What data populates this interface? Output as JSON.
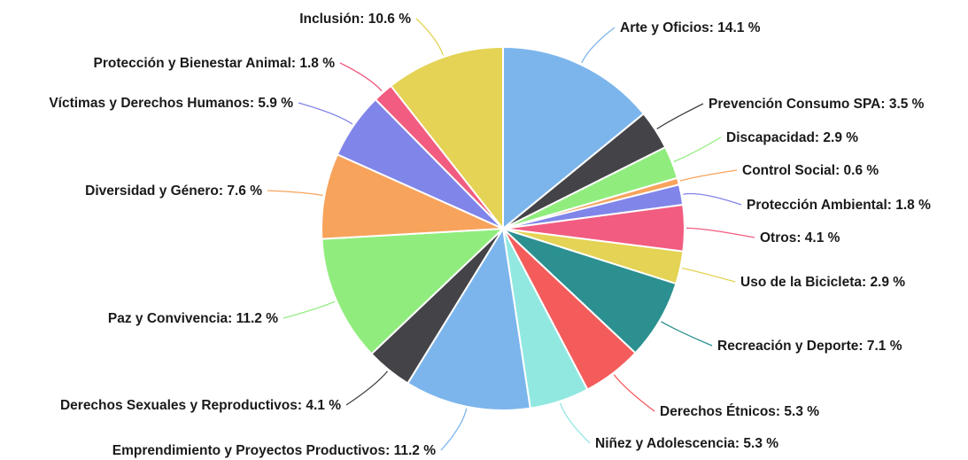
{
  "chart_data": {
    "type": "pie",
    "title": "",
    "start_angle_deg": 0,
    "direction": "clockwise",
    "slices": [
      {
        "label": "Arte y Oficios",
        "value": 14.1,
        "display": "Arte y Oficios: 14.1 %",
        "color": "#7cb5ec"
      },
      {
        "label": "Prevención Consumo SPA",
        "value": 3.5,
        "display": "Prevención Consumo SPA: 3.5 %",
        "color": "#434348"
      },
      {
        "label": "Discapacidad",
        "value": 2.9,
        "display": "Discapacidad: 2.9 %",
        "color": "#90ed7d"
      },
      {
        "label": "Control Social",
        "value": 0.6,
        "display": "Control Social: 0.6 %",
        "color": "#f7a35c"
      },
      {
        "label": "Protección Ambiental",
        "value": 1.8,
        "display": "Protección Ambiental: 1.8 %",
        "color": "#8085e9"
      },
      {
        "label": "Otros",
        "value": 4.1,
        "display": "Otros: 4.1 %",
        "color": "#f15c80"
      },
      {
        "label": "Uso de la Bicicleta",
        "value": 2.9,
        "display": "Uso de la Bicicleta: 2.9 %",
        "color": "#e4d354"
      },
      {
        "label": "Recreación y Deporte",
        "value": 7.1,
        "display": "Recreación y Deporte: 7.1 %",
        "color": "#2b908f"
      },
      {
        "label": "Derechos Étnicos",
        "value": 5.3,
        "display": "Derechos Étnicos: 5.3 %",
        "color": "#f45b5b"
      },
      {
        "label": "Niñez y Adolescencia",
        "value": 5.3,
        "display": "Niñez y Adolescencia: 5.3 %",
        "color": "#91e8e1"
      },
      {
        "label": "Emprendimiento y Proyectos Productivos",
        "value": 11.2,
        "display": "Emprendimiento y Proyectos Productivos: 11.2 %",
        "color": "#7cb5ec"
      },
      {
        "label": "Derechos Sexuales y Reproductivos",
        "value": 4.1,
        "display": "Derechos Sexuales y Reproductivos: 4.1 %",
        "color": "#434348"
      },
      {
        "label": "Paz y Convivencia",
        "value": 11.2,
        "display": "Paz y Convivencia: 11.2 %",
        "color": "#90ed7d"
      },
      {
        "label": "Diversidad y Género",
        "value": 7.6,
        "display": "Diversidad y Género: 7.6 %",
        "color": "#f7a35c"
      },
      {
        "label": "Víctimas y Derechos Humanos",
        "value": 5.9,
        "display": "Víctimas y Derechos Humanos: 5.9 %",
        "color": "#8085e9"
      },
      {
        "label": "Protección y Bienestar Animal",
        "value": 1.8,
        "display": "Protección y Bienestar Animal: 1.8 %",
        "color": "#f15c80"
      },
      {
        "label": "Inclusión",
        "value": 10.6,
        "display": "Inclusión: 10.6 %",
        "color": "#e4d354"
      }
    ]
  }
}
